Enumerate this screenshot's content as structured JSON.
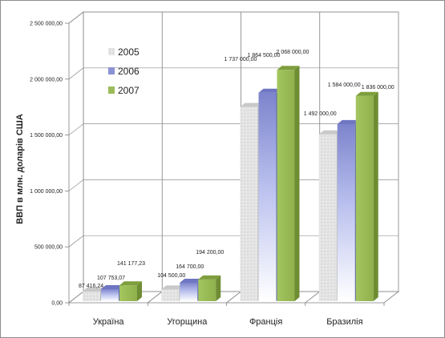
{
  "chart_data": {
    "type": "bar",
    "ylabel": "ВВП в млн. доларів США",
    "xlabel": "",
    "title": "",
    "ylim": [
      0,
      2500000
    ],
    "yticks": [
      "0,00",
      "500 000,00",
      "1 000 000,00",
      "1 500 000,00",
      "2 000 000,00",
      "2 500 000,00"
    ],
    "categories": [
      "Україна",
      "Угорщина",
      "Франція",
      "Бразилія"
    ],
    "series": [
      {
        "name": "2005",
        "color": "#d9d9d9",
        "values": [
          87416.24,
          104500,
          1737000,
          1492000
        ],
        "labels": [
          "87 416,24",
          "104 500,00",
          "1 737 000,00",
          "1 492 000,00"
        ]
      },
      {
        "name": "2006",
        "color": "#8b93d6",
        "values": [
          107753.07,
          164700,
          1864500,
          1584000
        ],
        "labels": [
          "107 753,07",
          "164 700,00",
          "1 864 500,00",
          "1 584 000,00"
        ]
      },
      {
        "name": "2007",
        "color": "#9bbb59",
        "values": [
          141177.23,
          194200,
          2068000,
          1836000
        ],
        "labels": [
          "141 177,23",
          "194 200,00",
          "2 068 000,00",
          "1 836 000,00"
        ]
      }
    ],
    "legend_position": "top-left",
    "grid": true,
    "style": "3d-clustered-column"
  }
}
